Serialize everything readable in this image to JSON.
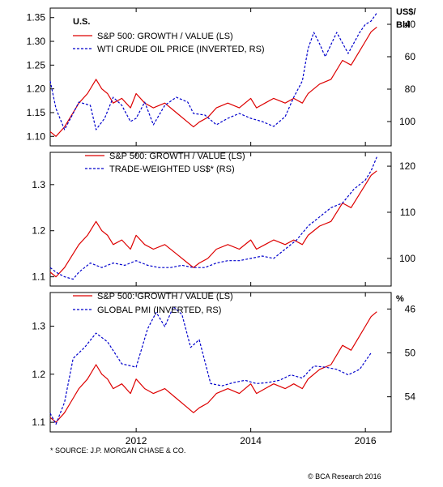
{
  "chart_data": [
    {
      "type": "line",
      "region_label": "U.S.",
      "right_units": [
        "US$/",
        "Bbl"
      ],
      "left_axis": {
        "ylim": [
          1.08,
          1.37
        ],
        "ticks": [
          1.1,
          1.15,
          1.2,
          1.25,
          1.3,
          1.35
        ],
        "tick_labels": [
          "1.10",
          "1.15",
          "1.20",
          "1.25",
          "1.30",
          "1.35"
        ]
      },
      "right_axis": {
        "inverted": true,
        "ylim": [
          30,
          115
        ],
        "ticks": [
          40,
          60,
          80,
          100
        ],
        "tick_labels": [
          "40",
          "60",
          "80",
          "100"
        ]
      },
      "series": [
        {
          "name": "S&P 500: GROWTH / VALUE (LS)",
          "color": "#dd0000",
          "style": "solid",
          "axis": "left",
          "x": [
            2010.5,
            2010.6,
            2010.75,
            2010.9,
            2011.0,
            2011.15,
            2011.3,
            2011.4,
            2011.5,
            2011.6,
            2011.75,
            2011.9,
            2012.0,
            2012.15,
            2012.3,
            2012.5,
            2012.7,
            2012.9,
            2013.0,
            2013.1,
            2013.25,
            2013.4,
            2013.6,
            2013.8,
            2014.0,
            2014.1,
            2014.25,
            2014.4,
            2014.6,
            2014.75,
            2014.9,
            2015.0,
            2015.2,
            2015.4,
            2015.6,
            2015.75,
            2015.9,
            2016.0,
            2016.1,
            2016.2
          ],
          "y": [
            1.11,
            1.1,
            1.12,
            1.15,
            1.17,
            1.19,
            1.22,
            1.2,
            1.19,
            1.17,
            1.18,
            1.16,
            1.19,
            1.17,
            1.16,
            1.17,
            1.15,
            1.13,
            1.12,
            1.13,
            1.14,
            1.16,
            1.17,
            1.16,
            1.18,
            1.16,
            1.17,
            1.18,
            1.17,
            1.18,
            1.17,
            1.19,
            1.21,
            1.22,
            1.26,
            1.25,
            1.28,
            1.3,
            1.32,
            1.33
          ]
        },
        {
          "name": "WTI CRUDE OIL PRICE (INVERTED, RS)",
          "color": "#0000cc",
          "style": "dashed",
          "axis": "right",
          "x": [
            2010.5,
            2010.6,
            2010.75,
            2010.9,
            2011.0,
            2011.2,
            2011.3,
            2011.45,
            2011.6,
            2011.75,
            2011.9,
            2012.0,
            2012.15,
            2012.3,
            2012.5,
            2012.7,
            2012.9,
            2013.0,
            2013.2,
            2013.4,
            2013.6,
            2013.8,
            2014.0,
            2014.2,
            2014.4,
            2014.6,
            2014.75,
            2014.9,
            2015.0,
            2015.1,
            2015.2,
            2015.3,
            2015.5,
            2015.7,
            2015.9,
            2016.0,
            2016.1,
            2016.2
          ],
          "y": [
            75,
            92,
            105,
            95,
            88,
            90,
            105,
            98,
            85,
            90,
            100,
            98,
            88,
            102,
            90,
            85,
            88,
            95,
            96,
            102,
            98,
            95,
            98,
            100,
            103,
            97,
            85,
            75,
            55,
            45,
            52,
            60,
            45,
            58,
            45,
            40,
            38,
            33
          ]
        }
      ]
    },
    {
      "type": "line",
      "left_axis": {
        "ylim": [
          1.08,
          1.37
        ],
        "ticks": [
          1.1,
          1.2,
          1.3
        ],
        "tick_labels": [
          "1.1",
          "1.2",
          "1.3"
        ]
      },
      "right_axis": {
        "inverted": false,
        "ylim": [
          94,
          123
        ],
        "ticks": [
          100,
          110,
          120
        ],
        "tick_labels": [
          "100",
          "110",
          "120"
        ]
      },
      "series": [
        {
          "name": "S&P 500: GROWTH / VALUE (LS)",
          "color": "#dd0000",
          "style": "solid",
          "axis": "left",
          "x": [
            2010.5,
            2010.6,
            2010.75,
            2010.9,
            2011.0,
            2011.15,
            2011.3,
            2011.4,
            2011.5,
            2011.6,
            2011.75,
            2011.9,
            2012.0,
            2012.15,
            2012.3,
            2012.5,
            2012.7,
            2012.9,
            2013.0,
            2013.1,
            2013.25,
            2013.4,
            2013.6,
            2013.8,
            2014.0,
            2014.1,
            2014.25,
            2014.4,
            2014.6,
            2014.75,
            2014.9,
            2015.0,
            2015.2,
            2015.4,
            2015.6,
            2015.75,
            2015.9,
            2016.0,
            2016.1,
            2016.2
          ],
          "y": [
            1.11,
            1.1,
            1.12,
            1.15,
            1.17,
            1.19,
            1.22,
            1.2,
            1.19,
            1.17,
            1.18,
            1.16,
            1.19,
            1.17,
            1.16,
            1.17,
            1.15,
            1.13,
            1.12,
            1.13,
            1.14,
            1.16,
            1.17,
            1.16,
            1.18,
            1.16,
            1.17,
            1.18,
            1.17,
            1.18,
            1.17,
            1.19,
            1.21,
            1.22,
            1.26,
            1.25,
            1.28,
            1.3,
            1.32,
            1.33
          ]
        },
        {
          "name": "TRADE-WEIGHTED US$* (RS)",
          "color": "#0000cc",
          "style": "dashed",
          "axis": "right",
          "x": [
            2010.5,
            2010.6,
            2010.75,
            2010.9,
            2011.0,
            2011.2,
            2011.4,
            2011.6,
            2011.8,
            2012.0,
            2012.2,
            2012.4,
            2012.6,
            2012.8,
            2013.0,
            2013.2,
            2013.4,
            2013.6,
            2013.8,
            2014.0,
            2014.2,
            2014.4,
            2014.6,
            2014.8,
            2015.0,
            2015.2,
            2015.4,
            2015.6,
            2015.8,
            2016.0,
            2016.1,
            2016.2
          ],
          "y": [
            98,
            97,
            96,
            95.5,
            97,
            99,
            98,
            99,
            98.5,
            99.5,
            98.5,
            98,
            98,
            98.5,
            98,
            98,
            99,
            99.5,
            99.5,
            100,
            100.5,
            100,
            102,
            104,
            107,
            109,
            111,
            112,
            115,
            117,
            119,
            122
          ]
        }
      ]
    },
    {
      "type": "line",
      "right_units": [
        "%"
      ],
      "left_axis": {
        "ylim": [
          1.08,
          1.37
        ],
        "ticks": [
          1.1,
          1.2,
          1.3
        ],
        "tick_labels": [
          "1.1",
          "1.2",
          "1.3"
        ]
      },
      "right_axis": {
        "inverted": true,
        "ylim": [
          44.5,
          57.2
        ],
        "ticks": [
          46,
          50,
          54
        ],
        "tick_labels": [
          "46",
          "50",
          "54"
        ]
      },
      "series": [
        {
          "name": "S&P 500: GROWTH / VALUE (LS)",
          "color": "#dd0000",
          "style": "solid",
          "axis": "left",
          "x": [
            2010.5,
            2010.6,
            2010.75,
            2010.9,
            2011.0,
            2011.15,
            2011.3,
            2011.4,
            2011.5,
            2011.6,
            2011.75,
            2011.9,
            2012.0,
            2012.15,
            2012.3,
            2012.5,
            2012.7,
            2012.9,
            2013.0,
            2013.1,
            2013.25,
            2013.4,
            2013.6,
            2013.8,
            2014.0,
            2014.1,
            2014.25,
            2014.4,
            2014.6,
            2014.75,
            2014.9,
            2015.0,
            2015.2,
            2015.4,
            2015.6,
            2015.75,
            2015.9,
            2016.0,
            2016.1,
            2016.2
          ],
          "y": [
            1.11,
            1.1,
            1.12,
            1.15,
            1.17,
            1.19,
            1.22,
            1.2,
            1.19,
            1.17,
            1.18,
            1.16,
            1.19,
            1.17,
            1.16,
            1.17,
            1.15,
            1.13,
            1.12,
            1.13,
            1.14,
            1.16,
            1.17,
            1.16,
            1.18,
            1.16,
            1.17,
            1.18,
            1.17,
            1.18,
            1.17,
            1.19,
            1.21,
            1.22,
            1.26,
            1.25,
            1.28,
            1.3,
            1.32,
            1.33
          ]
        },
        {
          "name": "GLOBAL PMI (INVERTED, RS)",
          "color": "#0000cc",
          "style": "dashed",
          "axis": "right",
          "x": [
            2010.5,
            2010.6,
            2010.75,
            2010.9,
            2011.1,
            2011.3,
            2011.5,
            2011.75,
            2012.0,
            2012.2,
            2012.35,
            2012.5,
            2012.65,
            2012.8,
            2012.95,
            2013.1,
            2013.3,
            2013.5,
            2013.7,
            2013.9,
            2014.1,
            2014.3,
            2014.5,
            2014.7,
            2014.9,
            2015.1,
            2015.3,
            2015.5,
            2015.7,
            2015.9,
            2016.1
          ],
          "y": [
            55.5,
            56.5,
            54.5,
            50.5,
            49.5,
            48.2,
            49.0,
            51.0,
            51.3,
            47.8,
            46.3,
            47.6,
            45.8,
            46.5,
            49.5,
            48.8,
            52.8,
            53.0,
            52.7,
            52.5,
            52.8,
            52.7,
            52.5,
            52.0,
            52.3,
            51.2,
            51.3,
            51.5,
            52.0,
            51.5,
            50.0
          ]
        }
      ]
    }
  ],
  "x_axis": {
    "xlim": [
      2010.5,
      2016.45
    ],
    "ticks": [
      2012,
      2014,
      2016
    ],
    "tick_labels": [
      "2012",
      "2014",
      "2016"
    ]
  },
  "footnote": "* SOURCE: J.P. MORGAN CHASE & CO.",
  "credit": "© BCA Research 2016"
}
